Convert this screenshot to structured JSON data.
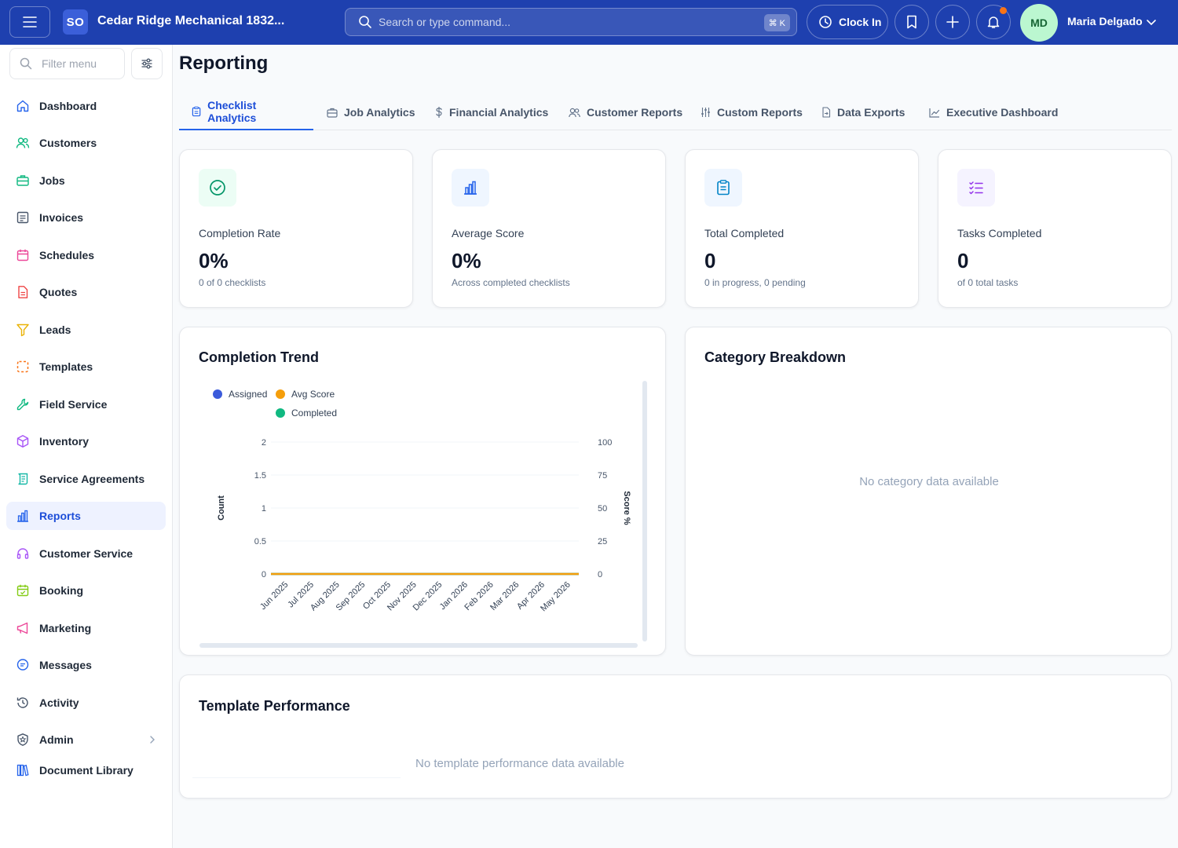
{
  "header": {
    "company_badge": "SO",
    "company_name": "Cedar Ridge Mechanical 1832...",
    "search_placeholder": "Search or type command...",
    "search_shortcut": "⌘ K",
    "clock_in_label": "Clock In",
    "user_initials": "MD",
    "user_name": "Maria Delgado"
  },
  "sidebar": {
    "filter_placeholder": "Filter menu",
    "items": [
      {
        "label": "Dashboard",
        "icon": "home-icon",
        "color": "#2563eb"
      },
      {
        "label": "Customers",
        "icon": "users-icon",
        "color": "#10b981"
      },
      {
        "label": "Jobs",
        "icon": "briefcase-icon",
        "color": "#10b981"
      },
      {
        "label": "Invoices",
        "icon": "invoice-icon",
        "color": "#475569"
      },
      {
        "label": "Schedules",
        "icon": "calendar-icon",
        "color": "#ec4899"
      },
      {
        "label": "Quotes",
        "icon": "document-icon",
        "color": "#ef4444"
      },
      {
        "label": "Leads",
        "icon": "funnel-icon",
        "color": "#eab308"
      },
      {
        "label": "Templates",
        "icon": "template-icon",
        "color": "#f97316"
      },
      {
        "label": "Field Service",
        "icon": "wrench-icon",
        "color": "#10b981"
      },
      {
        "label": "Inventory",
        "icon": "box-icon",
        "color": "#a855f7"
      },
      {
        "label": "Service Agreements",
        "icon": "scroll-icon",
        "color": "#14b8a6"
      },
      {
        "label": "Reports",
        "icon": "bar-chart-icon",
        "color": "#2563eb",
        "active": true
      },
      {
        "label": "Customer Service",
        "icon": "headset-icon",
        "color": "#a855f7"
      },
      {
        "label": "Booking",
        "icon": "calendar-check-icon",
        "color": "#84cc16"
      },
      {
        "label": "Marketing",
        "icon": "megaphone-icon",
        "color": "#ec4899"
      },
      {
        "label": "Messages",
        "icon": "message-icon",
        "color": "#2563eb"
      },
      {
        "label": "Activity",
        "icon": "history-icon",
        "color": "#475569"
      },
      {
        "label": "Admin",
        "icon": "shield-icon",
        "color": "#475569"
      },
      {
        "label": "Document Library",
        "icon": "library-icon",
        "color": "#2563eb"
      }
    ]
  },
  "main": {
    "title": "Reporting",
    "tabs": [
      {
        "label": "Checklist Analytics",
        "active": true
      },
      {
        "label": "Job Analytics"
      },
      {
        "label": "Financial Analytics"
      },
      {
        "label": "Customer Reports"
      },
      {
        "label": "Custom Reports"
      },
      {
        "label": "Data Exports"
      },
      {
        "label": "Executive Dashboard"
      }
    ],
    "stats": [
      {
        "label": "Completion Rate",
        "value": "0%",
        "sub": "0 of 0 checklists",
        "icon": "check-circle-icon"
      },
      {
        "label": "Average Score",
        "value": "0%",
        "sub": "Across completed checklists",
        "icon": "bar-chart-icon"
      },
      {
        "label": "Total Completed",
        "value": "0",
        "sub": "0 in progress, 0 pending",
        "icon": "clipboard-icon"
      },
      {
        "label": "Tasks Completed",
        "value": "0",
        "sub": "of 0 total tasks",
        "icon": "list-check-icon"
      }
    ],
    "trend_title": "Completion Trend",
    "category_title": "Category Breakdown",
    "category_empty": "No category data available",
    "template_title": "Template Performance",
    "template_empty": "No template performance data available"
  },
  "chart_data": {
    "type": "line",
    "title": "Completion Trend",
    "categories": [
      "Jun 2025",
      "Jul 2025",
      "Aug 2025",
      "Sep 2025",
      "Oct 2025",
      "Nov 2025",
      "Dec 2025",
      "Jan 2026",
      "Feb 2026",
      "Mar 2026",
      "Apr 2026",
      "May 2026"
    ],
    "series": [
      {
        "name": "Assigned",
        "axis": "left",
        "color": "#3b5bdb",
        "values": [
          0,
          0,
          0,
          0,
          0,
          0,
          0,
          0,
          0,
          0,
          0,
          0
        ]
      },
      {
        "name": "Avg Score",
        "axis": "right",
        "color": "#f59e0b",
        "values": [
          0,
          0,
          0,
          0,
          0,
          0,
          0,
          0,
          0,
          0,
          0,
          0
        ]
      },
      {
        "name": "Completed",
        "axis": "left",
        "color": "#10b981",
        "values": [
          0,
          0,
          0,
          0,
          0,
          0,
          0,
          0,
          0,
          0,
          0,
          0
        ]
      }
    ],
    "ylabel": "Count",
    "y2label": "Score %",
    "ylim": [
      0,
      2
    ],
    "y2lim": [
      0,
      100
    ],
    "yticks": [
      "0",
      "0.5",
      "1",
      "1.5",
      "2"
    ],
    "y2ticks": [
      "0",
      "25",
      "50",
      "75",
      "100"
    ],
    "legend": "top-left",
    "grid": true
  }
}
